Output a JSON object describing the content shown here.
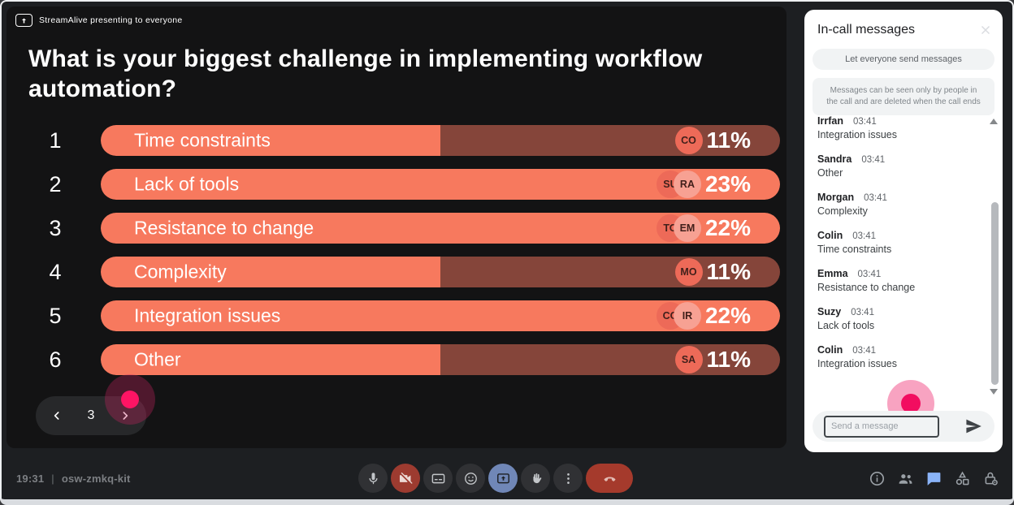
{
  "stage": {
    "badge_label": "StreamAlive presenting to everyone",
    "nav_page": "3"
  },
  "chart_data": {
    "type": "bar",
    "orientation": "horizontal",
    "title": "What is your biggest challenge in implementing workflow automation?",
    "categories": [
      "Time constraints",
      "Lack of tools",
      "Resistance to change",
      "Complexity",
      "Integration issues",
      "Other"
    ],
    "values": [
      11,
      23,
      22,
      11,
      22,
      11
    ],
    "unit": "%",
    "value_labels": [
      "11%",
      "23%",
      "22%",
      "11%",
      "22%",
      "11%"
    ],
    "rank_labels": [
      "1",
      "2",
      "3",
      "4",
      "5",
      "6"
    ],
    "voter_initials": [
      [
        "CO"
      ],
      [
        "SU",
        "RA"
      ],
      [
        "TO",
        "EM"
      ],
      [
        "MO"
      ],
      [
        "CO",
        "IR"
      ],
      [
        "SA"
      ]
    ],
    "fill_percents": [
      50,
      100,
      100,
      50,
      100,
      50
    ],
    "xlim": [
      0,
      23
    ],
    "grid": false,
    "legend": "none",
    "colors": {
      "bar_fill": "#F7795E",
      "bar_track": "#85453A",
      "chip": "#ED6A58",
      "chip_alt": "#F7A193"
    }
  },
  "chat": {
    "title": "In-call messages",
    "toggle_label": "Let everyone send messages",
    "notice": "Messages can be seen only by people in the call and are deleted when the call ends",
    "messages": [
      {
        "name": "Irrfan",
        "time": "03:41",
        "text": "Integration issues"
      },
      {
        "name": "Sandra",
        "time": "03:41",
        "text": "Other"
      },
      {
        "name": "Morgan",
        "time": "03:41",
        "text": "Complexity"
      },
      {
        "name": "Colin",
        "time": "03:41",
        "text": "Time constraints"
      },
      {
        "name": "Emma",
        "time": "03:41",
        "text": "Resistance to change"
      },
      {
        "name": "Suzy",
        "time": "03:41",
        "text": "Lack of tools"
      },
      {
        "name": "Colin",
        "time": "03:41",
        "text": "Integration issues"
      }
    ],
    "input_placeholder": "Send a message"
  },
  "bottom_bar": {
    "time": "19:31",
    "divider": "|",
    "meeting_code": "osw-zmkq-kit",
    "controls": [
      {
        "name": "microphone",
        "style": "dark"
      },
      {
        "name": "camera-off",
        "style": "red"
      },
      {
        "name": "captions",
        "style": "dark"
      },
      {
        "name": "reactions",
        "style": "dark"
      },
      {
        "name": "present-screen",
        "style": "blue"
      },
      {
        "name": "raise-hand",
        "style": "dark"
      },
      {
        "name": "more-options",
        "style": "dark"
      },
      {
        "name": "end-call",
        "style": "end"
      }
    ],
    "right_icons": [
      {
        "name": "info",
        "active": false
      },
      {
        "name": "people",
        "active": false
      },
      {
        "name": "chat",
        "active": true
      },
      {
        "name": "activities",
        "active": false
      },
      {
        "name": "host-controls",
        "active": false
      }
    ],
    "colors": {
      "active_blue": "#8AB4F8",
      "present_blue": "#7087B7",
      "danger_red": "#9D3B30",
      "end_red": "#A53A2C"
    }
  }
}
